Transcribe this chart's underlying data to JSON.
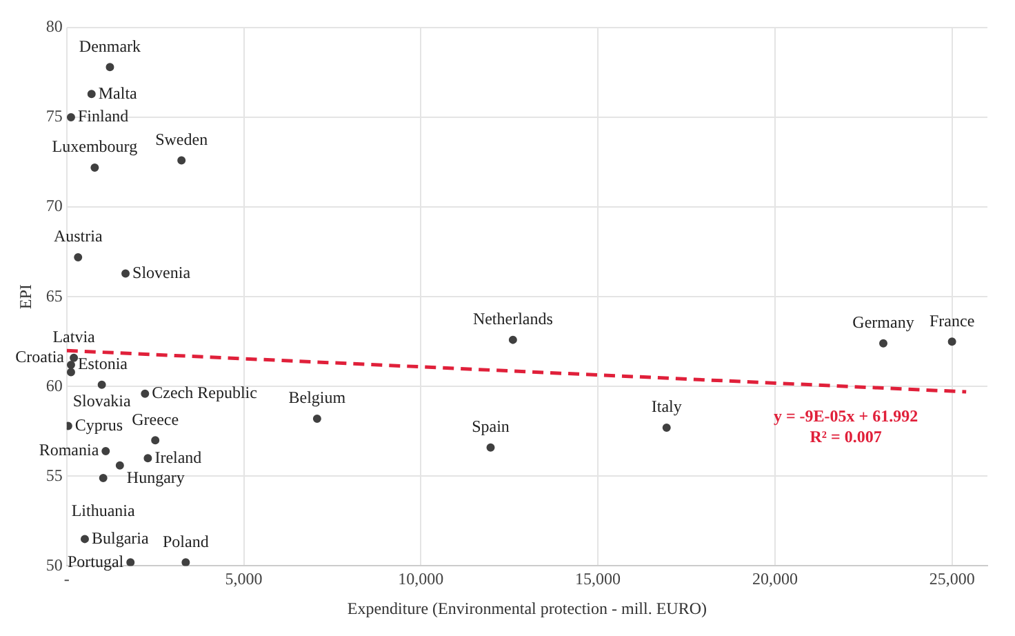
{
  "chart_data": {
    "type": "scatter",
    "xlabel": "Expenditure (Environmental protection - mill. EURO)",
    "ylabel": "EPI",
    "xlim": [
      0,
      26000
    ],
    "xticks": [
      {
        "value": 0,
        "label": "-"
      },
      {
        "value": 5000,
        "label": "5,000"
      },
      {
        "value": 10000,
        "label": "10,000"
      },
      {
        "value": 15000,
        "label": "15,000"
      },
      {
        "value": 20000,
        "label": "20,000"
      },
      {
        "value": 25000,
        "label": "25,000"
      }
    ],
    "ylim": [
      50,
      80
    ],
    "yticks": [
      50,
      55,
      60,
      65,
      70,
      75,
      80
    ],
    "grid": true,
    "legend": false,
    "marker": "circle",
    "series": [
      {
        "color": "#404040",
        "x": [
          1220,
          700,
          120,
          790,
          3240,
          320,
          1660,
          200,
          120,
          120,
          990,
          2210,
          40,
          1100,
          1500,
          1030,
          2500,
          2290,
          510,
          1800,
          3360,
          7070,
          12600,
          11970,
          16940,
          23060,
          25000
        ],
        "values": [
          77.8,
          76.3,
          75.0,
          72.2,
          72.6,
          67.2,
          66.3,
          61.6,
          61.2,
          60.8,
          60.1,
          59.6,
          57.8,
          56.4,
          55.6,
          54.9,
          57.0,
          56.0,
          51.5,
          50.2,
          50.2,
          58.2,
          62.6,
          56.6,
          57.7,
          62.4,
          62.5
        ]
      },
      {
        "type": "line",
        "color": "#e0203a",
        "x": [
          0,
          25400
        ],
        "values": [
          62.0,
          59.7
        ],
        "line_style": "dashed",
        "marker": "none"
      }
    ],
    "annotations": [
      {
        "text": "Denmark",
        "x": 1220,
        "y": 77.8
      },
      {
        "text": "Malta",
        "x": 700,
        "y": 76.3
      },
      {
        "text": "Finland",
        "x": 120,
        "y": 75.0
      },
      {
        "text": "Luxembourg",
        "x": 790,
        "y": 72.2
      },
      {
        "text": "Sweden",
        "x": 3240,
        "y": 72.6
      },
      {
        "text": "Austria",
        "x": 320,
        "y": 67.2
      },
      {
        "text": "Slovenia",
        "x": 1660,
        "y": 66.3
      },
      {
        "text": "Latvia",
        "x": 200,
        "y": 61.6
      },
      {
        "text": "Estonia",
        "x": 120,
        "y": 61.2
      },
      {
        "text": "Croatia",
        "x": 120,
        "y": 60.8
      },
      {
        "text": "Slovakia",
        "x": 990,
        "y": 60.1
      },
      {
        "text": "Cyprus",
        "x": 40,
        "y": 57.8
      },
      {
        "text": "Romania",
        "x": 1100,
        "y": 56.4
      },
      {
        "text": "Hungary",
        "x": 1500,
        "y": 55.6
      },
      {
        "text": "Lithuania",
        "x": 1030,
        "y": 54.9
      },
      {
        "text": "Greece",
        "x": 2500,
        "y": 57.0
      },
      {
        "text": "Ireland",
        "x": 2290,
        "y": 56.0
      },
      {
        "text": "Czech Republic",
        "x": 2210,
        "y": 59.6
      },
      {
        "text": "Bulgaria",
        "x": 510,
        "y": 51.5
      },
      {
        "text": "Portugal",
        "x": 1800,
        "y": 50.2
      },
      {
        "text": "Poland",
        "x": 3360,
        "y": 50.2
      },
      {
        "text": "Belgium",
        "x": 7070,
        "y": 58.2
      },
      {
        "text": "Netherlands",
        "x": 12600,
        "y": 62.6
      },
      {
        "text": "Spain",
        "x": 11970,
        "y": 56.6
      },
      {
        "text": "Italy",
        "x": 16940,
        "y": 57.7
      },
      {
        "text": "Germany",
        "x": 23060,
        "y": 62.4
      },
      {
        "text": "France",
        "x": 25000,
        "y": 62.5
      },
      "y = -9E-05x + 61.992",
      "R² = 0.007"
    ]
  }
}
